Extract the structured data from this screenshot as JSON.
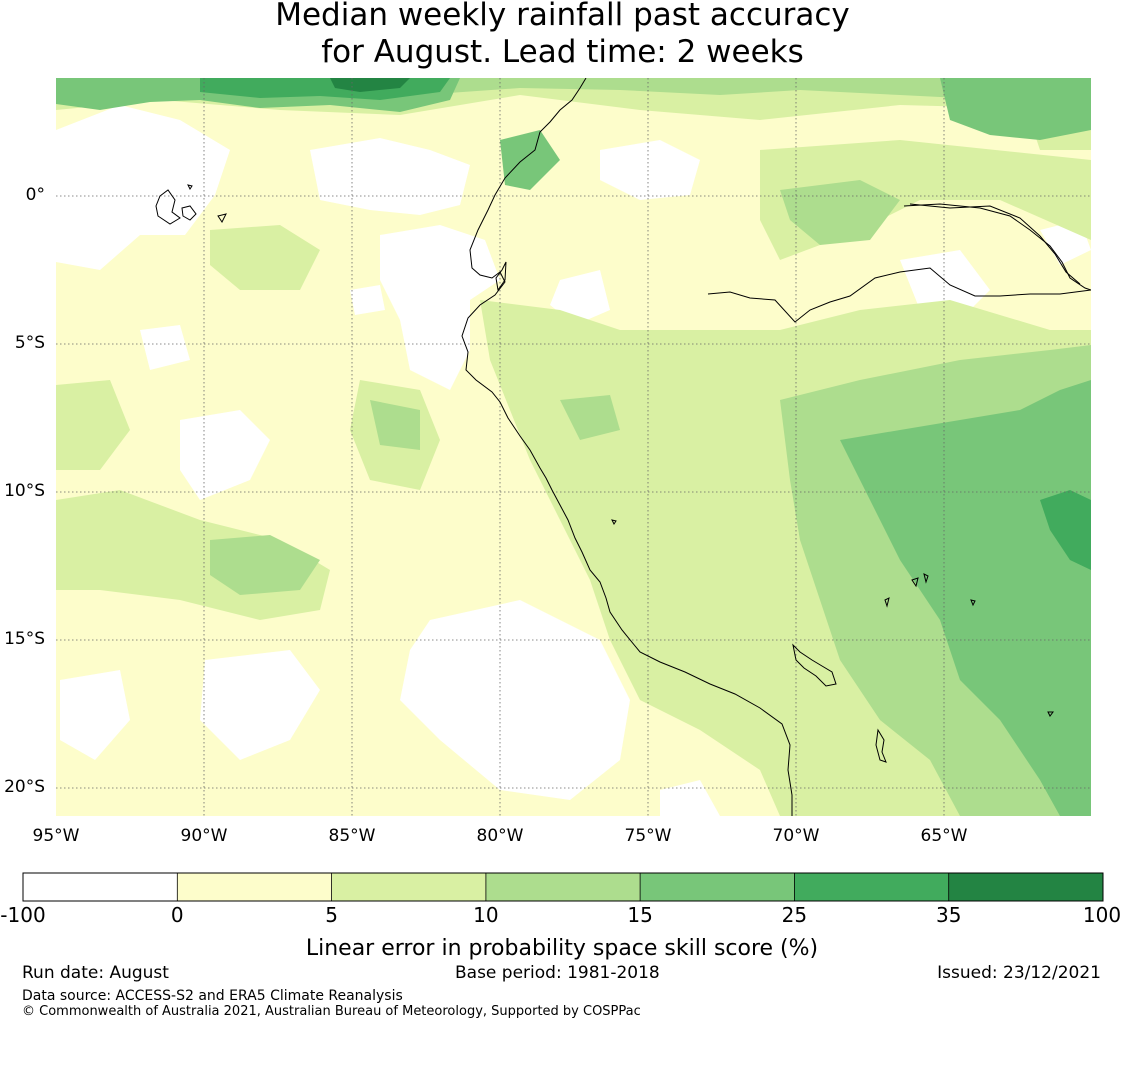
{
  "title": {
    "line1": "Median weekly rainfall past accuracy",
    "line2": "for August. Lead time: 2 weeks"
  },
  "map": {
    "lon_ticks": [
      "95°W",
      "90°W",
      "85°W",
      "80°W",
      "75°W",
      "70°W",
      "65°W"
    ],
    "lat_ticks": [
      "0°",
      "5°S",
      "10°S",
      "15°S",
      "20°S"
    ],
    "grid": true,
    "coastline_color": "#000000"
  },
  "colorbar": {
    "ticks": [
      "-100",
      "0",
      "5",
      "10",
      "15",
      "25",
      "35",
      "100"
    ],
    "colors": [
      "#ffffff",
      "#fdfdcb",
      "#d9f0a3",
      "#addd8e",
      "#78c679",
      "#41ab5d",
      "#238443"
    ],
    "label": "Linear error in probability space skill score (%)"
  },
  "footer": {
    "run_date": "Run date: August",
    "base_period": "Base period: 1981-2018",
    "issued": "Issued: 23/12/2021",
    "data_source": "Data source: ACCESS-S2 and ERA5 Climate Reanalysis",
    "copyright": "© Commonwealth of Australia 2021, Australian Bureau of Meteorology, Supported by COSPPac"
  }
}
